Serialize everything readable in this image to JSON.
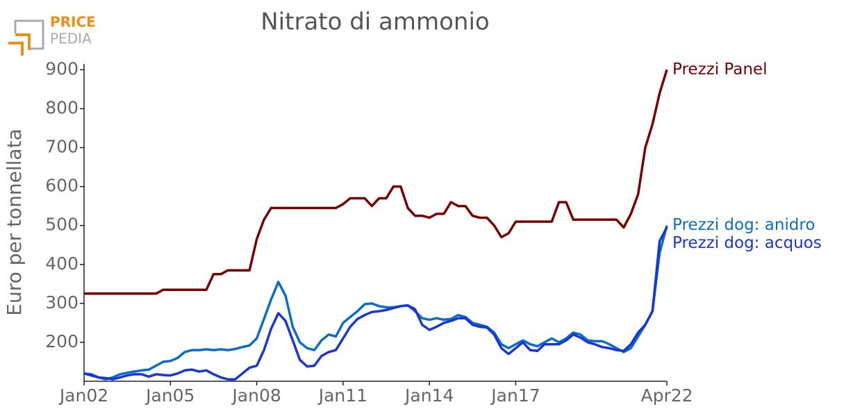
{
  "logo": {
    "line1": "PRICE",
    "line2": "PEDIA"
  },
  "chart_data": {
    "type": "line",
    "title": "Nitrato di ammonio",
    "y_label": "Euro per tonnellata",
    "x": [
      "2002-01",
      "2002-04",
      "2002-07",
      "2002-10",
      "2003-01",
      "2003-04",
      "2003-07",
      "2003-10",
      "2004-01",
      "2004-04",
      "2004-07",
      "2004-10",
      "2005-01",
      "2005-04",
      "2005-07",
      "2005-10",
      "2006-01",
      "2006-04",
      "2006-07",
      "2006-10",
      "2007-01",
      "2007-04",
      "2007-07",
      "2007-10",
      "2008-01",
      "2008-04",
      "2008-07",
      "2008-10",
      "2009-01",
      "2009-04",
      "2009-07",
      "2009-10",
      "2010-01",
      "2010-04",
      "2010-07",
      "2010-10",
      "2011-01",
      "2011-04",
      "2011-07",
      "2011-10",
      "2012-01",
      "2012-04",
      "2012-07",
      "2012-10",
      "2013-01",
      "2013-04",
      "2013-07",
      "2013-10",
      "2014-01",
      "2014-04",
      "2014-07",
      "2014-10",
      "2015-01",
      "2015-04",
      "2015-07",
      "2015-10",
      "2016-01",
      "2016-04",
      "2016-07",
      "2016-10",
      "2017-01",
      "2017-04",
      "2017-07",
      "2017-10",
      "2018-01",
      "2018-04",
      "2018-07",
      "2018-10",
      "2019-01",
      "2019-04",
      "2019-07",
      "2019-10",
      "2020-01",
      "2020-04",
      "2020-07",
      "2020-10",
      "2021-01",
      "2021-04",
      "2021-07",
      "2021-10",
      "2022-01",
      "2022-04"
    ],
    "series": [
      {
        "name": "Prezzi Panel",
        "color": "#7a0000",
        "values": [
          325,
          325,
          325,
          325,
          325,
          325,
          325,
          325,
          325,
          325,
          325,
          335,
          335,
          335,
          335,
          335,
          335,
          335,
          375,
          375,
          385,
          385,
          385,
          385,
          465,
          515,
          545,
          545,
          545,
          545,
          545,
          545,
          545,
          545,
          545,
          545,
          555,
          570,
          570,
          570,
          550,
          570,
          570,
          600,
          600,
          545,
          525,
          525,
          520,
          530,
          530,
          560,
          550,
          550,
          525,
          520,
          520,
          500,
          470,
          480,
          510,
          510,
          510,
          510,
          510,
          510,
          560,
          560,
          515,
          515,
          515,
          515,
          515,
          515,
          515,
          495,
          530,
          580,
          700,
          760,
          840,
          900
        ]
      },
      {
        "name": "Prezzi dog: anidro",
        "color": "#0a6ec4",
        "values": [
          120,
          118,
          110,
          105,
          110,
          118,
          122,
          125,
          128,
          130,
          140,
          150,
          152,
          160,
          175,
          180,
          180,
          182,
          180,
          182,
          180,
          183,
          188,
          192,
          210,
          260,
          310,
          355,
          320,
          240,
          200,
          185,
          180,
          205,
          220,
          215,
          250,
          265,
          280,
          298,
          300,
          293,
          290,
          290,
          293,
          295,
          280,
          262,
          258,
          262,
          258,
          260,
          270,
          265,
          250,
          245,
          240,
          225,
          195,
          185,
          195,
          205,
          195,
          190,
          200,
          210,
          200,
          210,
          225,
          220,
          205,
          203,
          203,
          195,
          185,
          175,
          185,
          215,
          245,
          280,
          430,
          500
        ]
      },
      {
        "name": "Prezzi dog: acquos",
        "color": "#1a35d6",
        "values": [
          120,
          115,
          110,
          108,
          105,
          110,
          115,
          118,
          118,
          112,
          118,
          116,
          115,
          120,
          128,
          130,
          125,
          128,
          118,
          110,
          105,
          105,
          120,
          135,
          140,
          180,
          235,
          275,
          255,
          205,
          155,
          138,
          140,
          165,
          175,
          180,
          210,
          240,
          260,
          270,
          278,
          280,
          283,
          288,
          293,
          295,
          285,
          245,
          232,
          240,
          250,
          255,
          262,
          262,
          245,
          240,
          238,
          220,
          185,
          170,
          185,
          200,
          180,
          178,
          195,
          195,
          195,
          205,
          220,
          212,
          200,
          195,
          188,
          185,
          180,
          178,
          195,
          225,
          245,
          280,
          460,
          495
        ]
      }
    ],
    "xlim": [
      "2002-01",
      "2022-04"
    ],
    "xticks": [
      {
        "value": "2002-01",
        "label": "Jan02"
      },
      {
        "value": "2005-01",
        "label": "Jan05"
      },
      {
        "value": "2008-01",
        "label": "Jan08"
      },
      {
        "value": "2011-01",
        "label": "Jan11"
      },
      {
        "value": "2014-01",
        "label": "Jan14"
      },
      {
        "value": "2017-01",
        "label": "Jan17"
      },
      {
        "value": "2022-04",
        "label": "Apr22"
      }
    ],
    "ylim": [
      100,
      915
    ],
    "yticks": [
      200,
      300,
      400,
      500,
      600,
      700,
      800,
      900
    ]
  }
}
